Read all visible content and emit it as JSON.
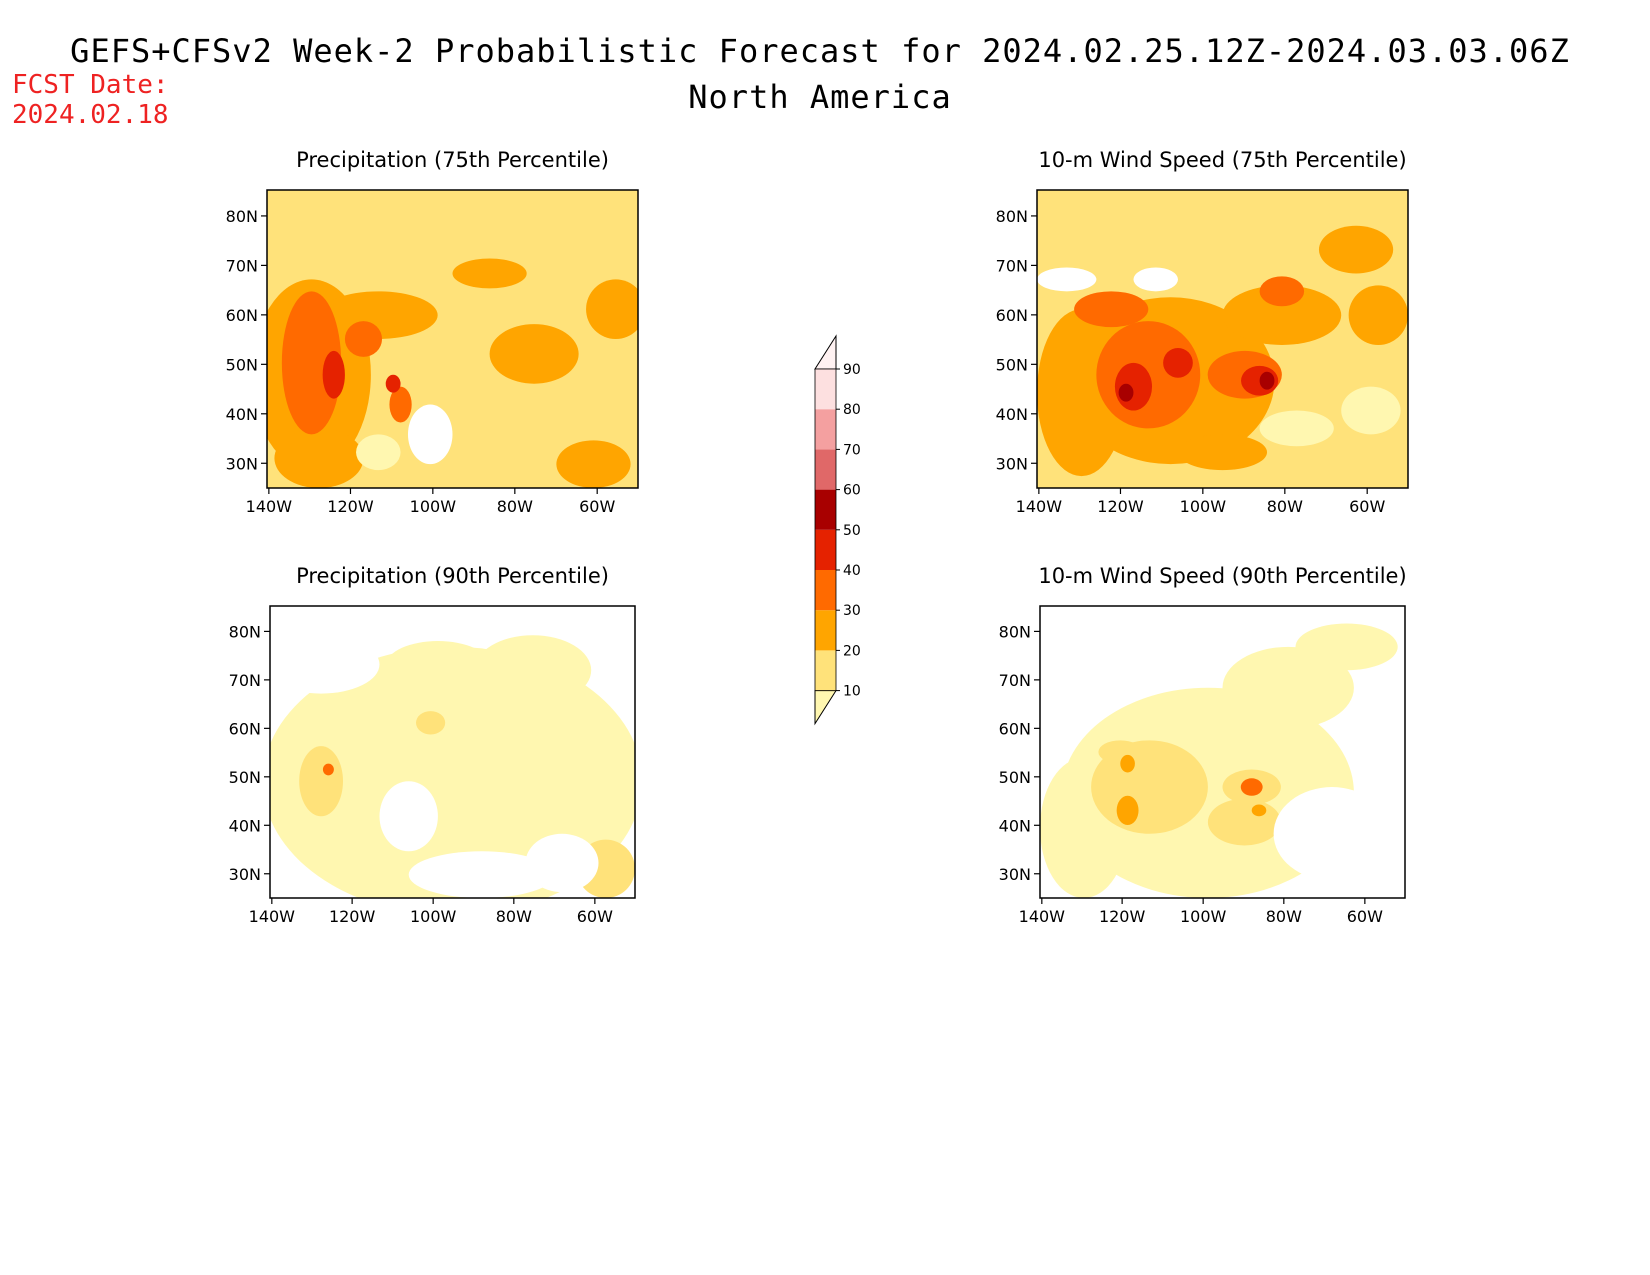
{
  "header": {
    "title": "GEFS+CFSv2 Week-2 Probabilistic Forecast for 2024.02.25.12Z-2024.03.03.06Z",
    "subtitle": "North America",
    "fcst_label": "FCST Date:",
    "fcst_date": "2024.02.18"
  },
  "panels": [
    {
      "id": "precip75",
      "title": "Precipitation (75th Percentile)",
      "intensity": "high"
    },
    {
      "id": "wind75",
      "title": "10-m Wind Speed (75th Percentile)",
      "intensity": "high"
    },
    {
      "id": "precip90",
      "title": "Precipitation (90th Percentile)",
      "intensity": "low"
    },
    {
      "id": "wind90",
      "title": "10-m Wind Speed (90th Percentile)",
      "intensity": "low"
    }
  ],
  "axes": {
    "lat_labels": [
      "80N",
      "70N",
      "60N",
      "50N",
      "40N",
      "30N"
    ],
    "lon_labels": [
      "140W",
      "120W",
      "100W",
      "80W",
      "60W"
    ]
  },
  "colorbar": {
    "levels": [
      "10",
      "20",
      "30",
      "40",
      "50",
      "60",
      "70",
      "80",
      "90"
    ],
    "colors": [
      "#fff7b0",
      "#ffe27a",
      "#ffa500",
      "#ff6a00",
      "#e52200",
      "#a80000",
      "#e06868",
      "#f4a0a0",
      "#fde0e0",
      "#fff2f2"
    ]
  }
}
